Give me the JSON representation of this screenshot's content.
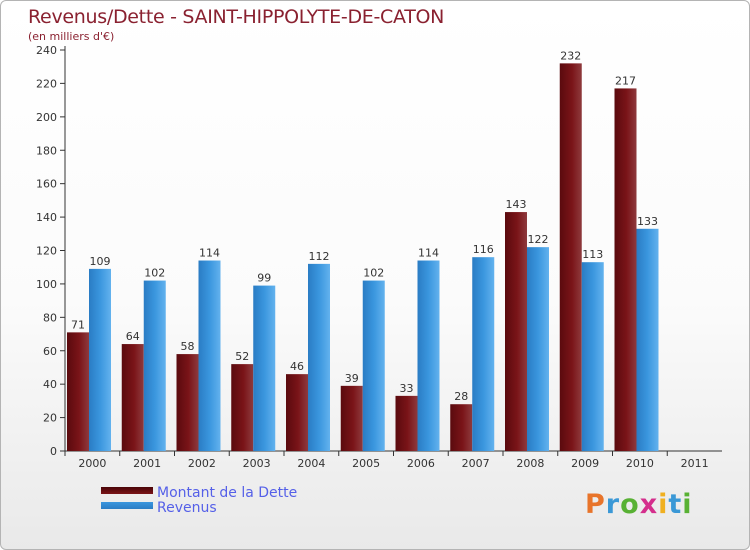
{
  "header": {
    "title": "Revenus/Dette - SAINT-HIPPOLYTE-DE-CATON",
    "subtitle": "(en milliers d'€)"
  },
  "legend": {
    "dette_label": "Montant de la Dette",
    "revenus_label": "Revenus"
  },
  "brand": {
    "letters": [
      "P",
      "r",
      "o",
      "x",
      "i",
      "t",
      "i"
    ],
    "colors": [
      "#e8742a",
      "#3a98d6",
      "#58b134",
      "#d42e8c",
      "#f0b020",
      "#3a98d6",
      "#58b134"
    ]
  },
  "colors": {
    "dette": "#7a1418",
    "revenus": "#3a96de",
    "axis": "#333333",
    "grid": "#d6d6d6"
  },
  "chart_data": {
    "type": "bar",
    "title": "Revenus/Dette - SAINT-HIPPOLYTE-DE-CATON",
    "ylabel": "(en milliers d'€)",
    "categories": [
      "2000",
      "2001",
      "2002",
      "2003",
      "2004",
      "2005",
      "2006",
      "2007",
      "2008",
      "2009",
      "2010",
      "2011"
    ],
    "series": [
      {
        "name": "Montant de la Dette",
        "values": [
          71,
          64,
          58,
          52,
          46,
          39,
          33,
          28,
          143,
          232,
          217,
          null
        ]
      },
      {
        "name": "Revenus",
        "values": [
          109,
          102,
          114,
          99,
          112,
          102,
          114,
          116,
          122,
          113,
          133,
          null
        ]
      }
    ],
    "yticks": [
      0,
      20,
      40,
      60,
      80,
      100,
      120,
      140,
      160,
      180,
      200,
      220,
      240
    ],
    "ylim": [
      0,
      240
    ],
    "grid": false,
    "legend_position": "bottom-left"
  }
}
